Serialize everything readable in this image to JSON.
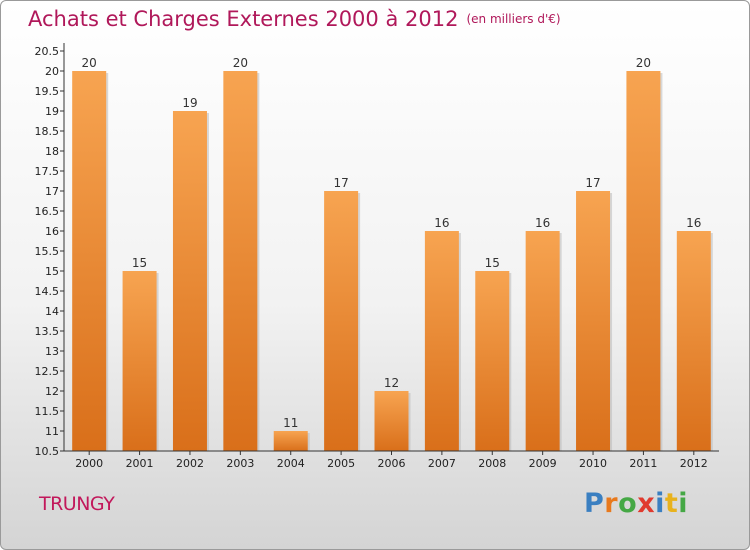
{
  "title": "Achats et Charges Externes 2000 à 2012",
  "unit": "(en milliers d'€)",
  "commune": "TRUNGY",
  "logo": {
    "letters": [
      {
        "ch": "P",
        "color": "#3a7fc1"
      },
      {
        "ch": "r",
        "color": "#e8791d"
      },
      {
        "ch": "o",
        "color": "#45a845"
      },
      {
        "ch": "x",
        "color": "#e03a2e"
      },
      {
        "ch": "i",
        "color": "#3a7fc1"
      },
      {
        "ch": "t",
        "color": "#e8b21d"
      },
      {
        "ch": "i",
        "color": "#45a845"
      }
    ]
  },
  "colors": {
    "bar_top": "#f7a451",
    "bar_bottom": "#d96f1a",
    "title": "#b0185a",
    "axis": "#333333"
  },
  "chart_data": {
    "type": "bar",
    "title": "Achats et Charges Externes 2000 à 2012",
    "ylabel": "(en milliers d'€)",
    "xlabel": "",
    "categories": [
      "2000",
      "2001",
      "2002",
      "2003",
      "2004",
      "2005",
      "2006",
      "2007",
      "2008",
      "2009",
      "2010",
      "2011",
      "2012"
    ],
    "values": [
      20,
      15,
      19,
      20,
      11,
      17,
      12,
      16,
      15,
      16,
      17,
      20,
      16
    ],
    "value_labels": [
      "20",
      "15",
      "19",
      "20",
      "11",
      "17",
      "12",
      "16",
      "15",
      "16",
      "17",
      "20",
      "16"
    ],
    "ylim": [
      10.5,
      20.5
    ],
    "yticks": [
      "10.5",
      "11",
      "11.5",
      "12",
      "12.5",
      "13",
      "13.5",
      "14",
      "14.5",
      "15",
      "15.5",
      "16",
      "16.5",
      "17",
      "17.5",
      "18",
      "18.5",
      "19",
      "19.5",
      "20",
      "20.5"
    ],
    "grid": false,
    "legend": "none"
  }
}
